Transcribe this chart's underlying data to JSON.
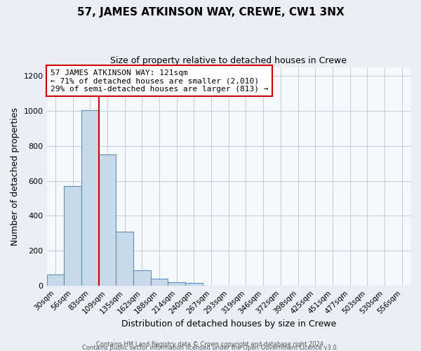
{
  "title": "57, JAMES ATKINSON WAY, CREWE, CW1 3NX",
  "subtitle": "Size of property relative to detached houses in Crewe",
  "xlabel": "Distribution of detached houses by size in Crewe",
  "ylabel": "Number of detached properties",
  "bar_values": [
    65,
    570,
    1005,
    750,
    310,
    90,
    40,
    20,
    15,
    0,
    0,
    0,
    0,
    0,
    0,
    0,
    0,
    0,
    0,
    0,
    0
  ],
  "bar_labels": [
    "30sqm",
    "56sqm",
    "83sqm",
    "109sqm",
    "135sqm",
    "162sqm",
    "188sqm",
    "214sqm",
    "240sqm",
    "267sqm",
    "293sqm",
    "319sqm",
    "346sqm",
    "372sqm",
    "398sqm",
    "425sqm",
    "451sqm",
    "477sqm",
    "503sqm",
    "530sqm",
    "556sqm"
  ],
  "bar_color": "#c8d9ea",
  "bar_edge_color": "#6090b8",
  "vline_color": "#cc0000",
  "vline_x": 2.5,
  "annotation_line1": "57 JAMES ATKINSON WAY: 121sqm",
  "annotation_line2": "← 71% of detached houses are smaller (2,010)",
  "annotation_line3": "29% of semi-detached houses are larger (813) →",
  "ylim": [
    0,
    1250
  ],
  "yticks": [
    0,
    200,
    400,
    600,
    800,
    1000,
    1200
  ],
  "background_color": "#eaeef5",
  "plot_bg_color": "#f5f8fc",
  "footer1": "Contains HM Land Registry data © Crown copyright and database right 2024.",
  "footer2": "Contains public sector information licensed under the Open Government Licence v3.0."
}
